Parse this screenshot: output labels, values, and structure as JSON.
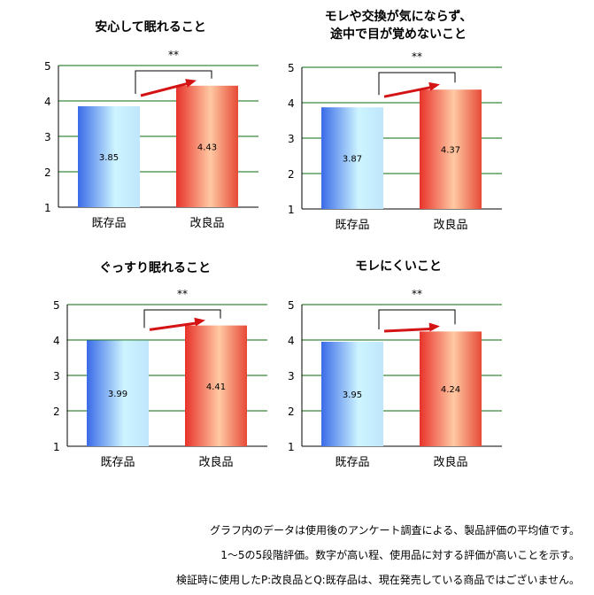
{
  "chart_data": [
    {
      "type": "bar",
      "title": "安心して眠れること",
      "categories": [
        "既存品",
        "改良品"
      ],
      "values": [
        3.85,
        4.43
      ],
      "value_labels": [
        "3.85",
        "4.43"
      ],
      "significance": "**",
      "ylim": [
        1,
        5
      ],
      "yticks": [
        "1",
        "2",
        "3",
        "4",
        "5"
      ],
      "grid": true,
      "colors": [
        "#3a6be8",
        "#e8322a"
      ]
    },
    {
      "type": "bar",
      "title": [
        "モレや交換が気にならず、",
        "途中で目が覚めないこと"
      ],
      "categories": [
        "既存品",
        "改良品"
      ],
      "values": [
        3.87,
        4.37
      ],
      "value_labels": [
        "3.87",
        "4.37"
      ],
      "significance": "**",
      "ylim": [
        1,
        5
      ],
      "yticks": [
        "1",
        "2",
        "3",
        "4",
        "5"
      ],
      "grid": true,
      "colors": [
        "#3a6be8",
        "#e8322a"
      ]
    },
    {
      "type": "bar",
      "title": "ぐっすり眠れること",
      "categories": [
        "既存品",
        "改良品"
      ],
      "values": [
        3.99,
        4.41
      ],
      "value_labels": [
        "3.99",
        "4.41"
      ],
      "significance": "**",
      "ylim": [
        1,
        5
      ],
      "yticks": [
        "1",
        "2",
        "3",
        "4",
        "5"
      ],
      "grid": true,
      "colors": [
        "#3a6be8",
        "#e8322a"
      ]
    },
    {
      "type": "bar",
      "title": "モレにくいこと",
      "categories": [
        "既存品",
        "改良品"
      ],
      "values": [
        3.95,
        4.24
      ],
      "value_labels": [
        "3.95",
        "4.24"
      ],
      "significance": "**",
      "ylim": [
        1,
        5
      ],
      "yticks": [
        "1",
        "2",
        "3",
        "4",
        "5"
      ],
      "grid": true,
      "colors": [
        "#3a6be8",
        "#e8322a"
      ]
    }
  ],
  "notes": [
    "グラフ内のデータは使用後のアンケート調査による、製品評価の平均値です。",
    "1～5の5段階評価。数字が高い程、使用品に対する評価が高いことを示す。",
    "検証時に使用したP:改良品とQ:既存品は、現在発売している商品ではございません。"
  ]
}
